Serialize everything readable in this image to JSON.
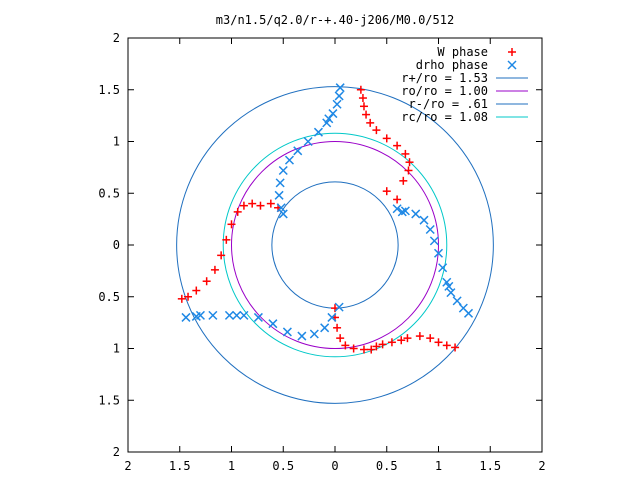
{
  "chart_data": {
    "type": "scatter",
    "title": "m3/n1.5/q2.0/r-+.40-j206/M0.0/512",
    "xlim": [
      -2,
      2
    ],
    "ylim": [
      -2,
      2
    ],
    "x_ticks": [
      {
        "v": -2,
        "label": "2"
      },
      {
        "v": -1.5,
        "label": "1.5"
      },
      {
        "v": -1,
        "label": "1"
      },
      {
        "v": -0.5,
        "label": "0.5"
      },
      {
        "v": 0,
        "label": "0"
      },
      {
        "v": 0.5,
        "label": "0.5"
      },
      {
        "v": 1,
        "label": "1"
      },
      {
        "v": 1.5,
        "label": "1.5"
      },
      {
        "v": 2,
        "label": "2"
      }
    ],
    "y_ticks": [
      {
        "v": 2,
        "label": "2"
      },
      {
        "v": 1.5,
        "label": "1.5"
      },
      {
        "v": 1,
        "label": "1"
      },
      {
        "v": 0.5,
        "label": "0.5"
      },
      {
        "v": 0,
        "label": "0"
      },
      {
        "v": -0.5,
        "label": "0.5"
      },
      {
        "v": -1,
        "label": "1"
      },
      {
        "v": -1.5,
        "label": "1.5"
      },
      {
        "v": -2,
        "label": "2"
      }
    ],
    "grid": false,
    "legend_position": "top-right",
    "circles": [
      {
        "name": "r+/ro = 1.53",
        "r": 1.53,
        "color": "#1f6fbf"
      },
      {
        "name": "ro/ro = 1.00",
        "r": 1.0,
        "color": "#9a00c8"
      },
      {
        "name": "r-/ro = .61",
        "r": 0.61,
        "color": "#1f6fbf"
      },
      {
        "name": "rc/ro = 1.08",
        "r": 1.08,
        "color": "#00c8c8"
      }
    ],
    "series": [
      {
        "name": "W phase",
        "marker": "+",
        "color": "#ff0000",
        "points": [
          [
            0.25,
            1.5
          ],
          [
            0.27,
            1.42
          ],
          [
            0.28,
            1.34
          ],
          [
            0.3,
            1.26
          ],
          [
            0.34,
            1.18
          ],
          [
            0.4,
            1.11
          ],
          [
            0.5,
            1.03
          ],
          [
            0.6,
            0.96
          ],
          [
            0.68,
            0.88
          ],
          [
            0.72,
            0.8
          ],
          [
            0.71,
            0.72
          ],
          [
            0.66,
            0.62
          ],
          [
            0.6,
            0.44
          ],
          [
            0.5,
            0.52
          ],
          [
            -0.72,
            0.38
          ],
          [
            -0.8,
            0.4
          ],
          [
            -0.88,
            0.38
          ],
          [
            -0.94,
            0.32
          ],
          [
            -1.0,
            0.2
          ],
          [
            -1.05,
            0.05
          ],
          [
            -1.1,
            -0.1
          ],
          [
            -1.16,
            -0.24
          ],
          [
            -1.24,
            -0.35
          ],
          [
            -1.34,
            -0.44
          ],
          [
            -1.42,
            -0.5
          ],
          [
            -1.48,
            -0.52
          ],
          [
            -0.55,
            0.36
          ],
          [
            -0.62,
            0.4
          ],
          [
            0.0,
            -0.61
          ],
          [
            0.0,
            -0.7
          ],
          [
            0.02,
            -0.8
          ],
          [
            0.05,
            -0.9
          ],
          [
            0.1,
            -0.97
          ],
          [
            0.18,
            -1.0
          ],
          [
            0.28,
            -1.01
          ],
          [
            0.4,
            -0.98
          ],
          [
            0.55,
            -0.94
          ],
          [
            0.7,
            -0.9
          ],
          [
            0.82,
            -0.88
          ],
          [
            0.92,
            -0.9
          ],
          [
            1.0,
            -0.94
          ],
          [
            1.08,
            -0.97
          ],
          [
            1.16,
            -0.99
          ],
          [
            0.35,
            -1.01
          ],
          [
            0.46,
            -0.96
          ],
          [
            0.64,
            -0.92
          ]
        ]
      },
      {
        "name": "drho phase",
        "marker": "x",
        "color": "#1e88e5",
        "points": [
          [
            0.05,
            1.52
          ],
          [
            0.04,
            1.44
          ],
          [
            0.02,
            1.36
          ],
          [
            -0.02,
            1.27
          ],
          [
            -0.08,
            1.18
          ],
          [
            -0.16,
            1.09
          ],
          [
            -0.26,
            1.0
          ],
          [
            -0.36,
            0.91
          ],
          [
            -0.44,
            0.82
          ],
          [
            -0.5,
            0.72
          ],
          [
            -0.53,
            0.6
          ],
          [
            -0.54,
            0.48
          ],
          [
            -0.52,
            0.36
          ],
          [
            0.6,
            0.35
          ],
          [
            0.68,
            0.33
          ],
          [
            0.78,
            0.3
          ],
          [
            0.86,
            0.24
          ],
          [
            0.92,
            0.15
          ],
          [
            0.96,
            0.04
          ],
          [
            1.0,
            -0.08
          ],
          [
            1.04,
            -0.22
          ],
          [
            1.08,
            -0.36
          ],
          [
            1.12,
            -0.46
          ],
          [
            1.18,
            -0.54
          ],
          [
            1.24,
            -0.61
          ],
          [
            1.29,
            -0.66
          ],
          [
            0.04,
            -0.6
          ],
          [
            -0.03,
            -0.7
          ],
          [
            -0.1,
            -0.8
          ],
          [
            -0.2,
            -0.86
          ],
          [
            -0.32,
            -0.88
          ],
          [
            -0.46,
            -0.84
          ],
          [
            -0.6,
            -0.76
          ],
          [
            -0.74,
            -0.7
          ],
          [
            -0.88,
            -0.68
          ],
          [
            -1.02,
            -0.68
          ],
          [
            -1.18,
            -0.68
          ],
          [
            -1.34,
            -0.69
          ],
          [
            -1.44,
            -0.7
          ],
          [
            -1.3,
            -0.68
          ],
          [
            0.65,
            0.32
          ],
          [
            1.1,
            -0.4
          ],
          [
            -0.95,
            -0.68
          ],
          [
            -0.5,
            0.3
          ],
          [
            -0.06,
            1.22
          ]
        ]
      }
    ]
  }
}
